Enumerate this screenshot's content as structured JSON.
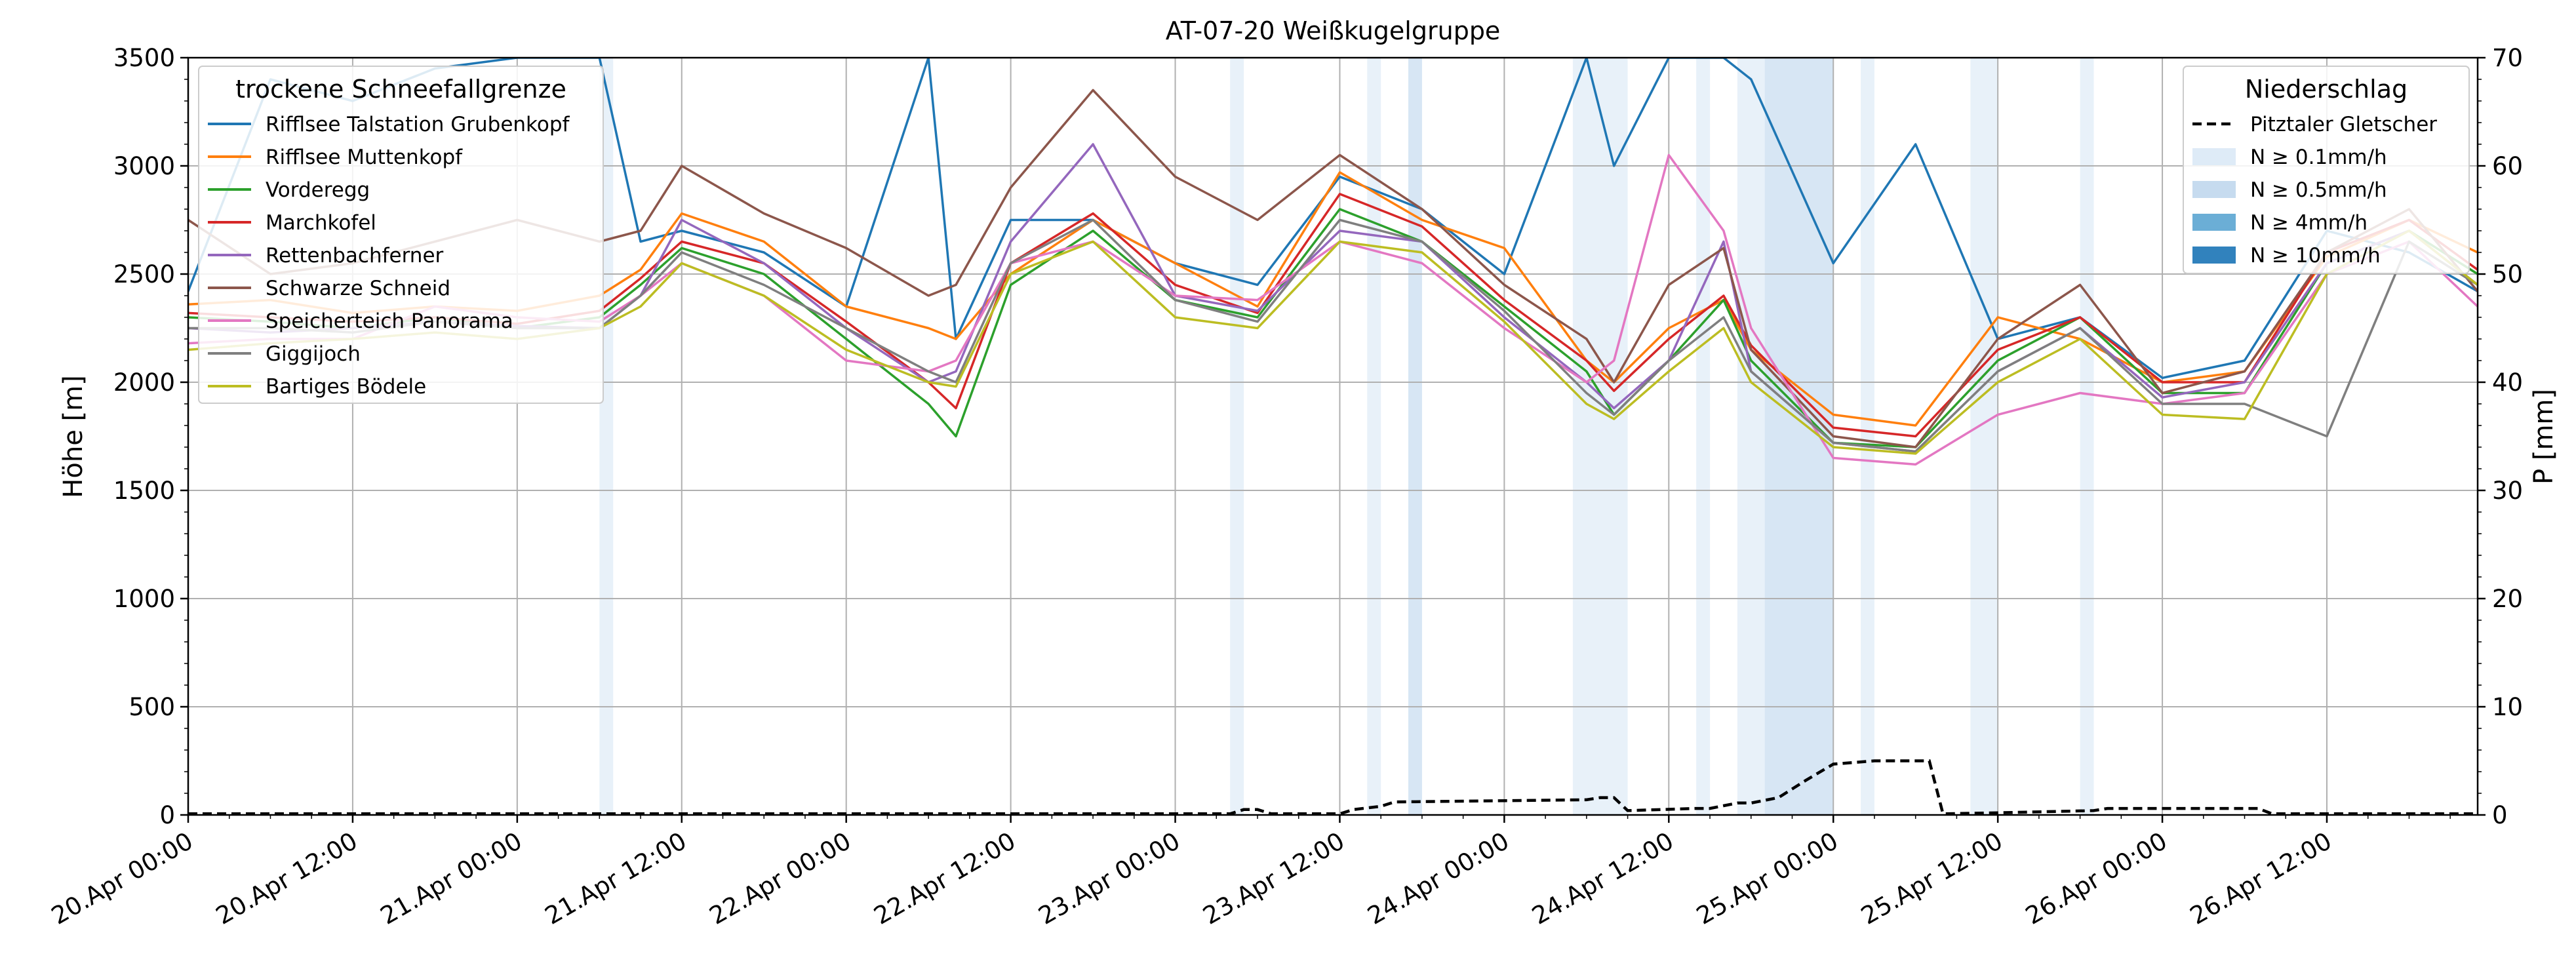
{
  "chart_data": {
    "type": "line",
    "title": "AT-07-20 Weißkugelgruppe",
    "ylabel": "Höhe [m]",
    "ylabel_right": "P [mm]",
    "ylim": [
      0,
      3500
    ],
    "ylim_right": [
      0,
      70
    ],
    "yticks": [
      0,
      500,
      1000,
      1500,
      2000,
      2500,
      3000,
      3500
    ],
    "yticks_right": [
      0,
      10,
      20,
      30,
      40,
      50,
      60,
      70
    ],
    "x_range_hours": [
      0,
      167
    ],
    "xticks": [
      {
        "h": 0,
        "label": "20.Apr 00:00"
      },
      {
        "h": 12,
        "label": "20.Apr 12:00"
      },
      {
        "h": 24,
        "label": "21.Apr 00:00"
      },
      {
        "h": 36,
        "label": "21.Apr 12:00"
      },
      {
        "h": 48,
        "label": "22.Apr 00:00"
      },
      {
        "h": 60,
        "label": "22.Apr 12:00"
      },
      {
        "h": 72,
        "label": "23.Apr 00:00"
      },
      {
        "h": 84,
        "label": "23.Apr 12:00"
      },
      {
        "h": 96,
        "label": "24.Apr 00:00"
      },
      {
        "h": 108,
        "label": "24.Apr 12:00"
      },
      {
        "h": 120,
        "label": "25.Apr 00:00"
      },
      {
        "h": 132,
        "label": "25.Apr 12:00"
      },
      {
        "h": 144,
        "label": "26.Apr 00:00"
      },
      {
        "h": 156,
        "label": "26.Apr 12:00"
      }
    ],
    "grid": true,
    "legend_left": {
      "title": "trockene Schneefallgrenze",
      "position": "top-left"
    },
    "legend_right": {
      "title": "Niederschlag",
      "position": "top-right",
      "entries": [
        {
          "label": "Pitztaler Gletscher",
          "style": "dashed",
          "color": "#000000"
        },
        {
          "label": "N ≥ 0.1mm/h",
          "color": "#deebf7"
        },
        {
          "label": "N ≥ 0.5mm/h",
          "color": "#c6dbef"
        },
        {
          "label": "N ≥ 4mm/h",
          "color": "#6baed6"
        },
        {
          "label": "N ≥ 10mm/h",
          "color": "#3182bd"
        }
      ]
    },
    "precip_bands": [
      {
        "from": 30,
        "to": 31,
        "level": 0.1
      },
      {
        "from": 76,
        "to": 77,
        "level": 0.1
      },
      {
        "from": 86,
        "to": 87,
        "level": 0.1
      },
      {
        "from": 89,
        "to": 90,
        "level": 0.5
      },
      {
        "from": 101,
        "to": 105,
        "level": 0.1
      },
      {
        "from": 110,
        "to": 111,
        "level": 0.1
      },
      {
        "from": 113,
        "to": 115,
        "level": 0.1
      },
      {
        "from": 115,
        "to": 120,
        "level": 0.5
      },
      {
        "from": 122,
        "to": 123,
        "level": 0.1
      },
      {
        "from": 130,
        "to": 132,
        "level": 0.1
      },
      {
        "from": 138,
        "to": 139,
        "level": 0.1
      }
    ],
    "precip_line": {
      "name": "Pitztaler Gletscher",
      "x": [
        0,
        76,
        77,
        78,
        79,
        84,
        85,
        87,
        88,
        102,
        103,
        104,
        105,
        110,
        111,
        113,
        114,
        116,
        117,
        118,
        120,
        123,
        127,
        128,
        132,
        139,
        140,
        151,
        152,
        167
      ],
      "y": [
        0.1,
        0.1,
        0.5,
        0.5,
        0.1,
        0.1,
        0.5,
        0.8,
        1.2,
        1.4,
        1.6,
        1.6,
        0.4,
        0.6,
        0.6,
        1.1,
        1.1,
        1.6,
        2.4,
        3.2,
        4.7,
        5.0,
        5.0,
        0.1,
        0.2,
        0.4,
        0.6,
        0.6,
        0.1,
        0.1
      ]
    },
    "x_hours": [
      0,
      6,
      12,
      18,
      24,
      30,
      33,
      36,
      42,
      48,
      54,
      56,
      60,
      66,
      72,
      78,
      84,
      90,
      96,
      102,
      104,
      108,
      112,
      114,
      120,
      126,
      132,
      138,
      144,
      150,
      156,
      162,
      167
    ],
    "series": [
      {
        "name": "Rifflsee Talstation Grubenkopf",
        "color": "#1f77b4",
        "values": [
          2420,
          3400,
          3300,
          3450,
          3500,
          3500,
          2650,
          2700,
          2600,
          2350,
          3500,
          2200,
          2750,
          2750,
          2550,
          2450,
          2950,
          2800,
          2500,
          3500,
          3000,
          3500,
          3500,
          3400,
          2550,
          3100,
          2200,
          2300,
          2020,
          2100,
          2700,
          2600,
          2420
        ]
      },
      {
        "name": "Rifflsee Muttenkopf",
        "color": "#ff7f0e",
        "values": [
          2360,
          2380,
          2320,
          2350,
          2330,
          2400,
          2520,
          2780,
          2650,
          2350,
          2250,
          2200,
          2500,
          2750,
          2550,
          2350,
          2970,
          2750,
          2620,
          2100,
          2000,
          2250,
          2380,
          2150,
          1850,
          1800,
          2300,
          2200,
          2000,
          2050,
          2580,
          2750,
          2600
        ]
      },
      {
        "name": "Vorderegg",
        "color": "#2ca02c",
        "values": [
          2300,
          2280,
          2250,
          2300,
          2250,
          2300,
          2450,
          2620,
          2500,
          2200,
          1900,
          1750,
          2450,
          2700,
          2380,
          2300,
          2800,
          2650,
          2350,
          2050,
          1850,
          2100,
          2380,
          2100,
          1720,
          1700,
          2100,
          2300,
          1950,
          1950,
          2550,
          2700,
          2500
        ]
      },
      {
        "name": "Marchkofel",
        "color": "#d62728",
        "values": [
          2320,
          2300,
          2280,
          2300,
          2270,
          2330,
          2480,
          2650,
          2550,
          2280,
          2000,
          1880,
          2550,
          2780,
          2450,
          2320,
          2870,
          2720,
          2380,
          2100,
          1960,
          2200,
          2400,
          2170,
          1790,
          1750,
          2150,
          2300,
          2000,
          2000,
          2600,
          2750,
          2520
        ]
      },
      {
        "name": "Rettenbachferner",
        "color": "#9467bd",
        "values": [
          2250,
          2230,
          2250,
          2280,
          2260,
          2250,
          2400,
          2750,
          2550,
          2250,
          2000,
          2050,
          2650,
          3100,
          2400,
          2330,
          2700,
          2650,
          2300,
          2000,
          1880,
          2100,
          2650,
          2050,
          1720,
          1680,
          2050,
          2250,
          1930,
          2000,
          2550,
          2700,
          2450
        ]
      },
      {
        "name": "Schwarze Schneid",
        "color": "#8c564b",
        "values": [
          2750,
          2500,
          2550,
          2650,
          2750,
          2650,
          2700,
          3000,
          2780,
          2620,
          2400,
          2450,
          2900,
          3350,
          2950,
          2750,
          3050,
          2800,
          2450,
          2200,
          2000,
          2450,
          2620,
          2150,
          1750,
          1700,
          2200,
          2450,
          1950,
          2050,
          2600,
          2800,
          2420
        ]
      },
      {
        "name": "Speicherteich Panorama",
        "color": "#e377c2",
        "values": [
          2180,
          2200,
          2200,
          2350,
          2300,
          2280,
          2400,
          2550,
          2400,
          2100,
          2050,
          2100,
          2550,
          2650,
          2400,
          2380,
          2650,
          2550,
          2250,
          2000,
          2100,
          3050,
          2700,
          2250,
          1650,
          1620,
          1850,
          1950,
          1900,
          1950,
          2500,
          2650,
          2350
        ]
      },
      {
        "name": "Giggijoch",
        "color": "#7f7f7f",
        "values": [
          2250,
          2250,
          2230,
          2280,
          2250,
          2250,
          2400,
          2600,
          2450,
          2250,
          2050,
          2000,
          2550,
          2750,
          2380,
          2280,
          2750,
          2650,
          2330,
          1950,
          1850,
          2100,
          2300,
          2050,
          1720,
          1680,
          2050,
          2250,
          1900,
          1900,
          1750,
          2650,
          2450
        ]
      },
      {
        "name": "Bartiges Bödele",
        "color": "#bcbd22",
        "values": [
          2150,
          2180,
          2200,
          2230,
          2200,
          2250,
          2350,
          2550,
          2400,
          2150,
          2000,
          1980,
          2500,
          2650,
          2300,
          2250,
          2650,
          2600,
          2280,
          1900,
          1830,
          2050,
          2250,
          2000,
          1700,
          1670,
          2000,
          2200,
          1850,
          1830,
          2500,
          2700,
          2450
        ]
      }
    ]
  }
}
